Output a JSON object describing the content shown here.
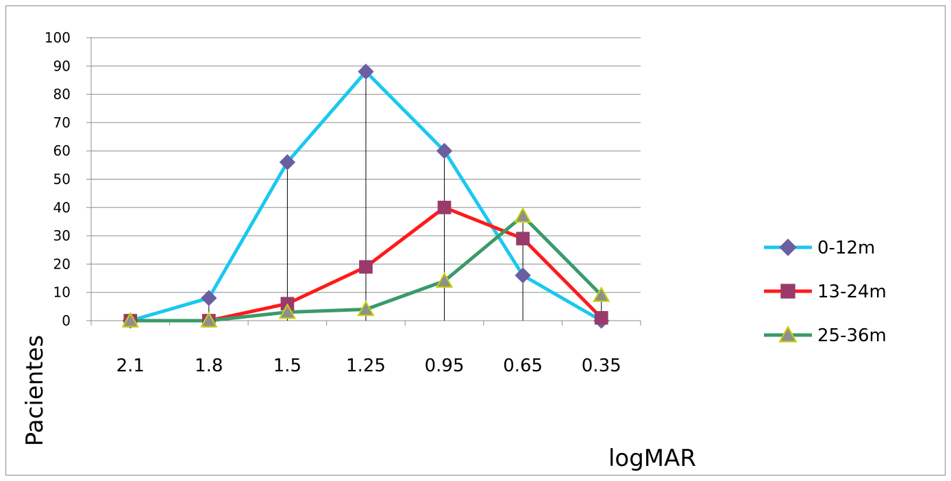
{
  "chart_data": {
    "type": "line",
    "xlabel": "logMAR",
    "ylabel": "Pacientes",
    "categories": [
      "2.1",
      "1.8",
      "1.5",
      "1.25",
      "0.95",
      "0.65",
      "0.35"
    ],
    "ylim": [
      0,
      100
    ],
    "yticks": [
      0,
      10,
      20,
      30,
      40,
      50,
      60,
      70,
      80,
      90,
      100
    ],
    "grid": true,
    "legend_position": "right",
    "drop_lines": true,
    "series": [
      {
        "name": "0-12m",
        "values": [
          0,
          8,
          56,
          88,
          60,
          16,
          0
        ],
        "color": "#1ac8f0",
        "marker": "diamond",
        "marker_color": "#6a5fa0"
      },
      {
        "name": "13-24m",
        "values": [
          0,
          0,
          6,
          19,
          40,
          29,
          1
        ],
        "color": "#ff1a1a",
        "marker": "square",
        "marker_color": "#9a3a6a"
      },
      {
        "name": "25-36m",
        "values": [
          0,
          0,
          3,
          4,
          14,
          37,
          9
        ],
        "color": "#3a9a6a",
        "marker": "triangle",
        "marker_color": "#8f8f8f",
        "marker_edge": "#c8d400"
      }
    ]
  }
}
